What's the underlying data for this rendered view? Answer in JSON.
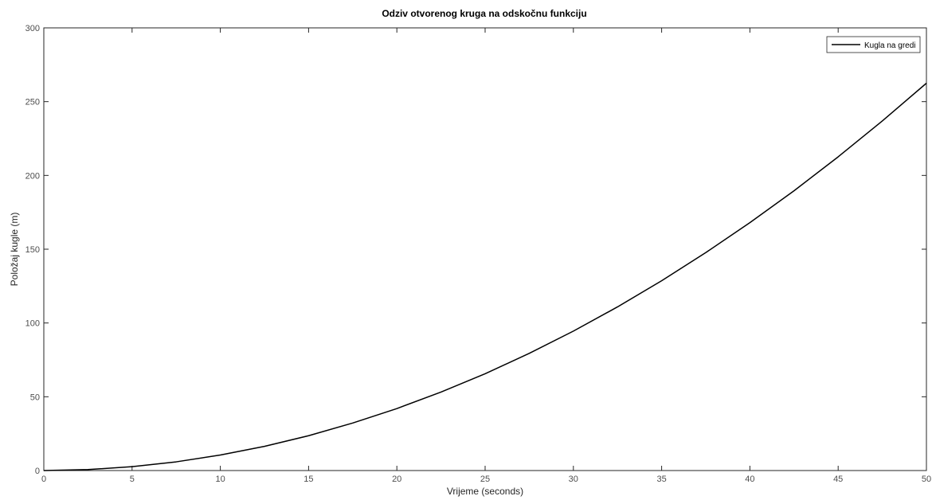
{
  "chart_data": {
    "type": "line",
    "title": "Odziv otvorenog kruga na odskočnu funkciju",
    "xlabel": "Vrijeme (seconds)",
    "ylabel": "Položaj kugle (m)",
    "xlim": [
      0,
      50
    ],
    "ylim": [
      0,
      300
    ],
    "xticks": [
      "0",
      "5",
      "10",
      "15",
      "20",
      "25",
      "30",
      "35",
      "40",
      "45",
      "50"
    ],
    "yticks": [
      "0",
      "50",
      "100",
      "150",
      "200",
      "250",
      "300"
    ],
    "grid": false,
    "legend_position": "top-right",
    "series": [
      {
        "name": "Kugla na gredi",
        "color": "#000000",
        "x": [
          0,
          2.5,
          5,
          7.5,
          10,
          12.5,
          15,
          17.5,
          20,
          22.5,
          25,
          27.5,
          30,
          32.5,
          35,
          37.5,
          40,
          42.5,
          45,
          47.5,
          50
        ],
        "y": [
          0,
          0.66,
          2.6,
          5.9,
          10.5,
          16.4,
          23.6,
          32.2,
          42,
          53.2,
          65.6,
          79.4,
          94.5,
          110.9,
          128.6,
          147.7,
          168,
          189.6,
          212.6,
          236.9,
          262.5
        ]
      }
    ]
  }
}
